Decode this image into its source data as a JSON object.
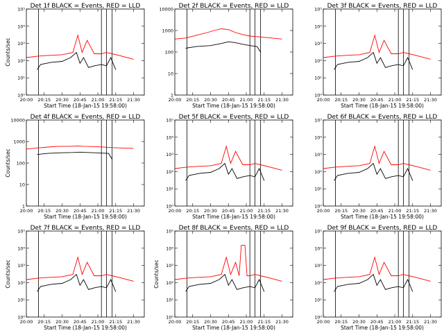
{
  "colors": {
    "events": "#000000",
    "lld": "#ff0000",
    "background": "#ffffff"
  },
  "x_tick_labels": [
    "20:00",
    "20:15",
    "20:30",
    "20:45",
    "21:00",
    "21:15",
    "21:30"
  ],
  "xlabel": "Start Time (18-Jan-15 19:58:00)",
  "ylabel": "Counts/sec",
  "chart_data": [
    {
      "type": "line",
      "title": "Det 1f BLACK = Events, RED = LLD",
      "ylim": [
        1,
        100000
      ],
      "yscale": "log",
      "y_tick_labels": [
        "10⁰",
        "10¹",
        "10²",
        "10³",
        "10⁴",
        "10⁵"
      ],
      "xlabel": "Start Time (18-Jan-15 19:58:00)",
      "ylabel": "Counts/sec",
      "vlines_x": [
        20.17,
        21.05,
        21.12,
        21.2
      ],
      "series": [
        {
          "name": "Events",
          "x": [
            20.15,
            20.2,
            20.35,
            20.5,
            20.62,
            20.7,
            20.75,
            20.8,
            20.87,
            20.95,
            21.05,
            21.12,
            21.18,
            21.25
          ],
          "y": [
            30,
            60,
            80,
            90,
            150,
            300,
            70,
            150,
            40,
            50,
            60,
            50,
            150,
            30
          ]
        },
        {
          "name": "LLD",
          "x": [
            20.0,
            20.15,
            20.3,
            20.5,
            20.65,
            20.72,
            20.78,
            20.85,
            20.95,
            21.05,
            21.12,
            21.2,
            21.3,
            21.5
          ],
          "y": [
            150,
            180,
            200,
            220,
            300,
            3000,
            300,
            1500,
            250,
            250,
            300,
            250,
            200,
            120
          ]
        }
      ]
    },
    {
      "type": "line",
      "title": "Det 2f BLACK = Events, RED = LLD",
      "ylim": [
        1,
        10000
      ],
      "yscale": "log",
      "y_tick_labels": [
        "1",
        "10",
        "100",
        "1000",
        "10000"
      ],
      "xlabel": "",
      "ylabel": "",
      "vlines_x": [
        20.17,
        21.05,
        21.12,
        21.2
      ],
      "series": [
        {
          "name": "Events",
          "x": [
            20.15,
            20.3,
            20.5,
            20.65,
            20.75,
            20.85,
            20.95,
            21.05,
            21.15,
            21.2
          ],
          "y": [
            150,
            180,
            200,
            250,
            300,
            270,
            230,
            200,
            180,
            100
          ]
        },
        {
          "name": "LLD",
          "x": [
            20.0,
            20.15,
            20.3,
            20.45,
            20.55,
            20.65,
            20.75,
            20.85,
            20.95,
            21.05,
            21.2,
            21.5
          ],
          "y": [
            400,
            450,
            600,
            800,
            1000,
            1200,
            1100,
            800,
            650,
            550,
            500,
            400
          ]
        }
      ]
    },
    {
      "type": "line",
      "title": "Det 3f BLACK = Events, RED = LLD",
      "ylim": [
        1,
        100000
      ],
      "yscale": "log",
      "y_tick_labels": [
        "10⁰",
        "10¹",
        "10²",
        "10³",
        "10⁴",
        "10⁵"
      ],
      "xlabel": "",
      "ylabel": "",
      "vlines_x": [
        20.17,
        21.05,
        21.12,
        21.2
      ],
      "series": [
        {
          "name": "Events",
          "x": [
            20.15,
            20.2,
            20.35,
            20.5,
            20.62,
            20.7,
            20.75,
            20.8,
            20.87,
            20.95,
            21.05,
            21.12,
            21.18,
            21.25
          ],
          "y": [
            30,
            60,
            80,
            90,
            150,
            300,
            70,
            150,
            40,
            50,
            60,
            50,
            150,
            30
          ]
        },
        {
          "name": "LLD",
          "x": [
            20.0,
            20.15,
            20.3,
            20.5,
            20.65,
            20.72,
            20.78,
            20.85,
            20.95,
            21.05,
            21.12,
            21.2,
            21.3,
            21.5
          ],
          "y": [
            150,
            180,
            200,
            220,
            300,
            3000,
            300,
            1500,
            250,
            250,
            300,
            250,
            200,
            120
          ]
        }
      ]
    },
    {
      "type": "line",
      "title": "Det 4f BLACK = Events, RED = LLD",
      "ylim": [
        1,
        10000
      ],
      "yscale": "log",
      "y_tick_labels": [
        "1",
        "10",
        "100",
        "1000",
        "10000"
      ],
      "xlabel": "",
      "ylabel": "Counts/sec",
      "vlines_x": [
        20.17,
        21.05,
        21.12,
        21.2
      ],
      "series": [
        {
          "name": "Events",
          "x": [
            20.15,
            20.3,
            20.5,
            20.65,
            20.75,
            20.85,
            20.95,
            21.05,
            21.15,
            21.2
          ],
          "y": [
            250,
            280,
            300,
            310,
            320,
            310,
            300,
            290,
            280,
            150
          ]
        },
        {
          "name": "LLD",
          "x": [
            20.0,
            20.15,
            20.3,
            20.45,
            20.6,
            20.72,
            20.8,
            20.95,
            21.05,
            21.2,
            21.5
          ],
          "y": [
            450,
            500,
            550,
            600,
            600,
            620,
            600,
            580,
            560,
            520,
            480
          ]
        }
      ]
    },
    {
      "type": "line",
      "title": "Det 5f BLACK = Events, RED = LLD",
      "ylim": [
        1,
        100000
      ],
      "yscale": "log",
      "y_tick_labels": [
        "10⁰",
        "10¹",
        "10²",
        "10³",
        "10⁴",
        "10⁵"
      ],
      "xlabel": "",
      "ylabel": "",
      "vlines_x": [
        20.17,
        21.05,
        21.12,
        21.2
      ],
      "series": [
        {
          "name": "Events",
          "x": [
            20.15,
            20.2,
            20.35,
            20.5,
            20.62,
            20.7,
            20.75,
            20.8,
            20.87,
            20.95,
            21.05,
            21.12,
            21.18,
            21.25
          ],
          "y": [
            30,
            60,
            80,
            90,
            150,
            300,
            70,
            150,
            40,
            50,
            60,
            50,
            150,
            30
          ]
        },
        {
          "name": "LLD",
          "x": [
            20.0,
            20.15,
            20.3,
            20.5,
            20.65,
            20.72,
            20.78,
            20.85,
            20.95,
            21.05,
            21.12,
            21.2,
            21.3,
            21.5
          ],
          "y": [
            150,
            180,
            200,
            220,
            300,
            3000,
            300,
            1500,
            250,
            250,
            300,
            250,
            200,
            120
          ]
        }
      ]
    },
    {
      "type": "line",
      "title": "Det 6f BLACK = Events, RED = LLD",
      "ylim": [
        1,
        100000
      ],
      "yscale": "log",
      "y_tick_labels": [
        "10⁰",
        "10¹",
        "10²",
        "10³",
        "10⁴",
        "10⁵"
      ],
      "xlabel": "",
      "ylabel": "",
      "vlines_x": [
        20.17,
        21.05,
        21.12,
        21.2
      ],
      "series": [
        {
          "name": "Events",
          "x": [
            20.15,
            20.2,
            20.35,
            20.5,
            20.62,
            20.7,
            20.75,
            20.8,
            20.87,
            20.95,
            21.05,
            21.12,
            21.18,
            21.25
          ],
          "y": [
            30,
            60,
            80,
            90,
            150,
            300,
            70,
            150,
            40,
            50,
            60,
            50,
            150,
            30
          ]
        },
        {
          "name": "LLD",
          "x": [
            20.0,
            20.15,
            20.3,
            20.5,
            20.65,
            20.72,
            20.78,
            20.85,
            20.95,
            21.05,
            21.12,
            21.2,
            21.3,
            21.5
          ],
          "y": [
            150,
            180,
            200,
            220,
            300,
            3000,
            300,
            1500,
            250,
            250,
            300,
            250,
            200,
            120
          ]
        }
      ]
    },
    {
      "type": "line",
      "title": "Det 7f BLACK = Events, RED = LLD",
      "ylim": [
        1,
        100000
      ],
      "yscale": "log",
      "y_tick_labels": [
        "10⁰",
        "10¹",
        "10²",
        "10³",
        "10⁴",
        "10⁵"
      ],
      "xlabel": "",
      "ylabel": "Counts/sec",
      "vlines_x": [
        20.17,
        21.05,
        21.12,
        21.2
      ],
      "series": [
        {
          "name": "Events",
          "x": [
            20.15,
            20.2,
            20.35,
            20.5,
            20.62,
            20.7,
            20.75,
            20.8,
            20.87,
            20.95,
            21.05,
            21.12,
            21.18,
            21.25
          ],
          "y": [
            30,
            60,
            80,
            90,
            150,
            300,
            70,
            150,
            40,
            50,
            60,
            50,
            150,
            30
          ]
        },
        {
          "name": "LLD",
          "x": [
            20.0,
            20.15,
            20.3,
            20.5,
            20.65,
            20.72,
            20.78,
            20.85,
            20.95,
            21.05,
            21.12,
            21.2,
            21.3,
            21.5
          ],
          "y": [
            150,
            180,
            200,
            220,
            300,
            3000,
            300,
            1500,
            250,
            250,
            300,
            250,
            200,
            120
          ]
        }
      ]
    },
    {
      "type": "line",
      "title": "Det 8f BLACK = Events, RED = LLD",
      "ylim": [
        1,
        100000
      ],
      "yscale": "log",
      "y_tick_labels": [
        "10⁰",
        "10¹",
        "10²",
        "10³",
        "10⁴",
        "10⁵"
      ],
      "xlabel": "",
      "ylabel": "Counts/sec",
      "vlines_x": [
        20.17,
        21.05,
        21.12,
        21.2
      ],
      "series": [
        {
          "name": "Events",
          "x": [
            20.15,
            20.2,
            20.35,
            20.5,
            20.62,
            20.7,
            20.75,
            20.8,
            20.87,
            20.95,
            21.05,
            21.12,
            21.18,
            21.25
          ],
          "y": [
            30,
            60,
            80,
            90,
            150,
            300,
            70,
            150,
            40,
            50,
            60,
            50,
            150,
            30
          ]
        },
        {
          "name": "LLD",
          "x": [
            20.0,
            20.15,
            20.3,
            20.5,
            20.65,
            20.72,
            20.78,
            20.85,
            20.9,
            20.93,
            20.98,
            21.01,
            21.05,
            21.12,
            21.2,
            21.3,
            21.5
          ],
          "y": [
            150,
            180,
            200,
            220,
            300,
            3000,
            300,
            1500,
            250,
            15000,
            15000,
            250,
            250,
            300,
            250,
            200,
            120
          ]
        }
      ]
    },
    {
      "type": "line",
      "title": "Det 9f BLACK = Events, RED = LLD",
      "ylim": [
        1,
        100000
      ],
      "yscale": "log",
      "y_tick_labels": [
        "10⁰",
        "10¹",
        "10²",
        "10³",
        "10⁴",
        "10⁵"
      ],
      "xlabel": "",
      "ylabel": "",
      "vlines_x": [
        20.17,
        21.05,
        21.12,
        21.2
      ],
      "series": [
        {
          "name": "Events",
          "x": [
            20.15,
            20.2,
            20.35,
            20.5,
            20.62,
            20.7,
            20.75,
            20.8,
            20.87,
            20.95,
            21.05,
            21.12,
            21.18,
            21.25
          ],
          "y": [
            30,
            60,
            80,
            90,
            150,
            300,
            70,
            150,
            40,
            50,
            60,
            50,
            150,
            30
          ]
        },
        {
          "name": "LLD",
          "x": [
            20.0,
            20.15,
            20.3,
            20.5,
            20.65,
            20.72,
            20.78,
            20.85,
            20.95,
            21.05,
            21.12,
            21.2,
            21.3,
            21.5
          ],
          "y": [
            150,
            180,
            200,
            220,
            300,
            3000,
            300,
            1500,
            250,
            250,
            300,
            250,
            200,
            120
          ]
        }
      ]
    }
  ]
}
